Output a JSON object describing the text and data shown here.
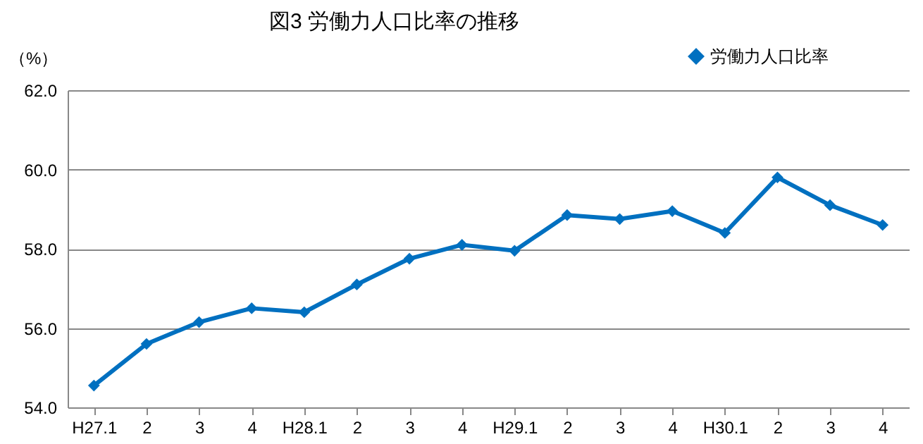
{
  "chart_data": {
    "type": "line",
    "title": "図3  労働力人口比率の推移",
    "ylabel": "（%）",
    "categories": [
      "H27.1",
      "2",
      "3",
      "4",
      "H28.1",
      "2",
      "3",
      "4",
      "H29.1",
      "2",
      "3",
      "4",
      "H30.1",
      "2",
      "3",
      "4"
    ],
    "series": [
      {
        "name": "労働力人口比率",
        "color": "#0070c0",
        "values": [
          54.55,
          55.6,
          56.15,
          56.5,
          56.4,
          57.1,
          57.75,
          58.1,
          57.95,
          58.85,
          58.75,
          58.95,
          58.4,
          59.8,
          59.1,
          58.6
        ]
      }
    ],
    "ylim": [
      54,
      62
    ],
    "yticks": [
      {
        "value": 54,
        "label": "54.0"
      },
      {
        "value": 56,
        "label": "56.0"
      },
      {
        "value": 58,
        "label": "58.0"
      },
      {
        "value": 60,
        "label": "60.0"
      },
      {
        "value": 62,
        "label": "62.0"
      }
    ],
    "grid": "y",
    "legend": "top right",
    "marker": "diamond",
    "line_style": "solid"
  }
}
